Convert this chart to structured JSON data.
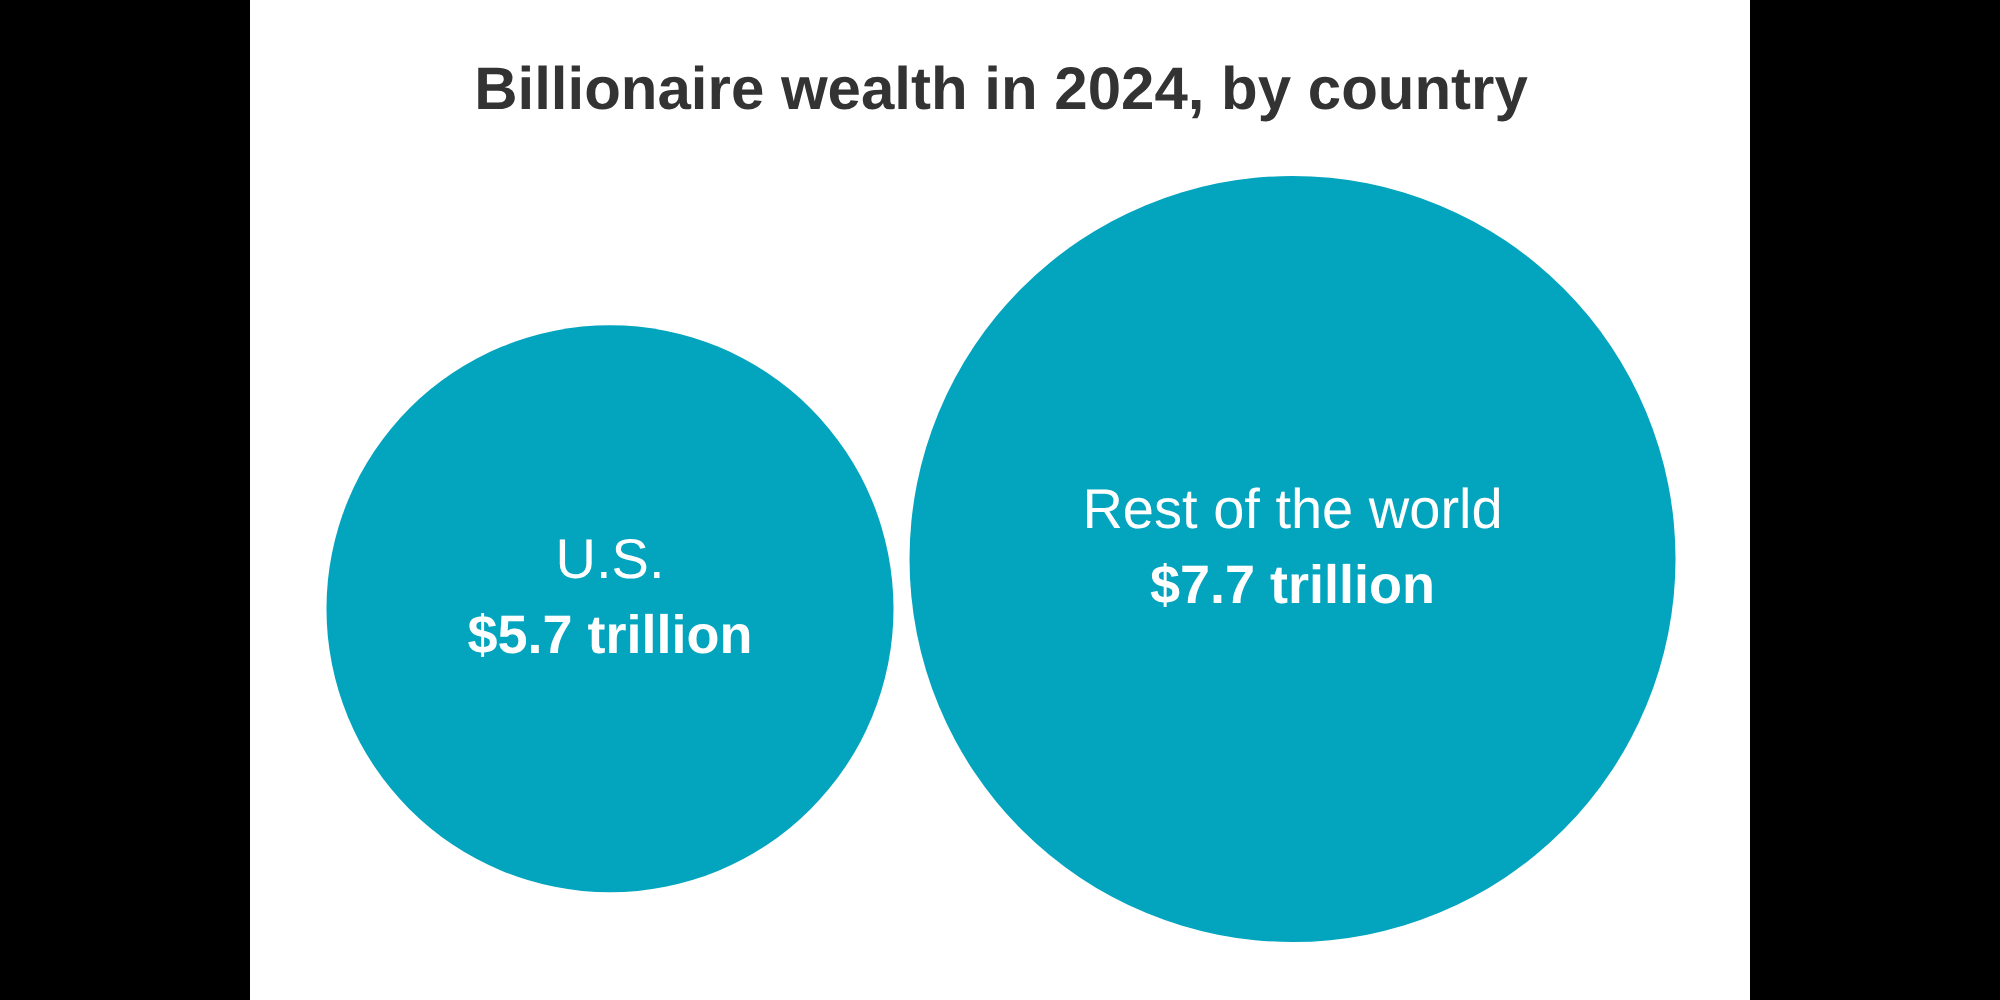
{
  "chart_data": {
    "type": "other",
    "title": "Billionaire wealth in 2024, by country",
    "categories": [
      "U.S.",
      "Rest of the world"
    ],
    "values": [
      5.7,
      7.7
    ],
    "value_labels": [
      "$5.7 trillion",
      "$7.7 trillion"
    ],
    "color": "#02a4be"
  }
}
